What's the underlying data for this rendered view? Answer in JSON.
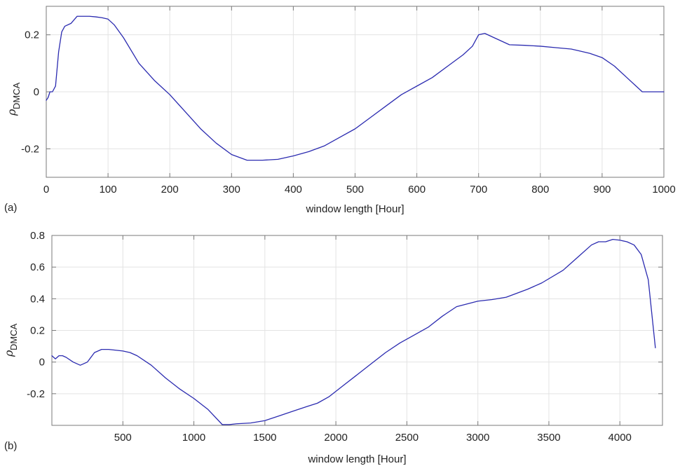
{
  "chart_data": [
    {
      "type": "line",
      "panel_label": "(a)",
      "xlabel": "window length [Hour]",
      "ylabel": "ρ",
      "ylabel_sub": "DMCA",
      "xlim": [
        0,
        1000
      ],
      "ylim": [
        -0.3,
        0.3
      ],
      "xticks": [
        0,
        100,
        200,
        300,
        400,
        500,
        600,
        700,
        800,
        900,
        1000
      ],
      "xtick_labels": [
        "0",
        "100",
        "200",
        "300",
        "400",
        "500",
        "600",
        "700",
        "800",
        "900",
        "1000"
      ],
      "yticks": [
        -0.2,
        0,
        0.2
      ],
      "ytick_labels": [
        "-0.2",
        "0",
        "0.2"
      ],
      "grid": true,
      "color": "#2b2bb0",
      "series": [
        {
          "x": [
            0,
            3,
            6,
            10,
            15,
            20,
            25,
            30,
            40,
            50,
            60,
            70,
            80,
            90,
            100,
            110,
            125,
            150,
            175,
            200,
            225,
            250,
            275,
            300,
            325,
            350,
            375,
            400,
            425,
            450,
            475,
            500,
            525,
            550,
            575,
            600,
            625,
            650,
            675,
            690,
            700,
            710,
            725,
            750,
            775,
            800,
            825,
            850,
            860,
            880,
            900,
            920,
            940,
            955,
            965,
            970,
            1000
          ],
          "y": [
            -0.03,
            -0.02,
            0.0,
            0.0,
            0.02,
            0.14,
            0.21,
            0.23,
            0.24,
            0.265,
            0.265,
            0.265,
            0.263,
            0.26,
            0.255,
            0.235,
            0.19,
            0.1,
            0.04,
            -0.01,
            -0.07,
            -0.13,
            -0.18,
            -0.22,
            -0.24,
            -0.24,
            -0.237,
            -0.225,
            -0.21,
            -0.19,
            -0.16,
            -0.13,
            -0.09,
            -0.05,
            -0.01,
            0.02,
            0.05,
            0.09,
            0.13,
            0.16,
            0.2,
            0.205,
            0.19,
            0.165,
            0.163,
            0.16,
            0.155,
            0.15,
            0.145,
            0.135,
            0.12,
            0.09,
            0.05,
            0.02,
            0.0,
            0.0,
            0.0
          ]
        }
      ]
    },
    {
      "type": "line",
      "panel_label": "(b)",
      "xlabel": "window length [Hour]",
      "ylabel": "ρ",
      "ylabel_sub": "DMCA",
      "xlim": [
        0,
        4300
      ],
      "ylim": [
        -0.4,
        0.8
      ],
      "xticks": [
        500,
        1000,
        1500,
        2000,
        2500,
        3000,
        3500,
        4000
      ],
      "xtick_labels": [
        "500",
        "1000",
        "1500",
        "2000",
        "2500",
        "3000",
        "3500",
        "4000"
      ],
      "yticks": [
        -0.2,
        0,
        0.2,
        0.4,
        0.6,
        0.8
      ],
      "ytick_labels": [
        "-0.2",
        "0",
        "0.2",
        "0.4",
        "0.6",
        "0.8"
      ],
      "grid": true,
      "color": "#2b2bb0",
      "series": [
        {
          "x": [
            0,
            25,
            50,
            75,
            100,
            150,
            200,
            250,
            300,
            350,
            400,
            500,
            550,
            600,
            700,
            800,
            900,
            1000,
            1100,
            1200,
            1250,
            1300,
            1400,
            1500,
            1600,
            1700,
            1800,
            1870,
            1950,
            2050,
            2150,
            2250,
            2350,
            2450,
            2530,
            2650,
            2750,
            2850,
            3000,
            3100,
            3200,
            3350,
            3450,
            3600,
            3700,
            3800,
            3850,
            3900,
            3950,
            4000,
            4050,
            4100,
            4150,
            4200,
            4250
          ],
          "y": [
            0.04,
            0.02,
            0.04,
            0.04,
            0.03,
            0.0,
            -0.02,
            0.0,
            0.06,
            0.08,
            0.08,
            0.07,
            0.06,
            0.04,
            -0.02,
            -0.1,
            -0.17,
            -0.23,
            -0.3,
            -0.395,
            -0.395,
            -0.39,
            -0.385,
            -0.37,
            -0.34,
            -0.31,
            -0.28,
            -0.26,
            -0.22,
            -0.15,
            -0.08,
            -0.01,
            0.06,
            0.12,
            0.16,
            0.22,
            0.29,
            0.35,
            0.385,
            0.395,
            0.41,
            0.46,
            0.5,
            0.58,
            0.66,
            0.74,
            0.76,
            0.76,
            0.775,
            0.77,
            0.76,
            0.74,
            0.68,
            0.52,
            0.09
          ]
        }
      ]
    }
  ]
}
